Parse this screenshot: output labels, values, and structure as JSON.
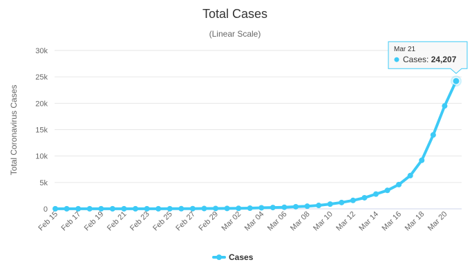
{
  "chart_data": {
    "type": "line",
    "title": "Total Cases",
    "subtitle": "(Linear Scale)",
    "ylabel": "Total Coronavirus Cases",
    "xlabel": "",
    "ylim": [
      0,
      30000
    ],
    "yticks": [
      "0",
      "5k",
      "10k",
      "15k",
      "20k",
      "25k",
      "30k"
    ],
    "ytick_values": [
      0,
      5000,
      10000,
      15000,
      20000,
      25000,
      30000
    ],
    "grid": true,
    "legend_position": "bottom-center",
    "color": "#3dcaf6",
    "x": [
      "Feb 15",
      "Feb 16",
      "Feb 17",
      "Feb 18",
      "Feb 19",
      "Feb 20",
      "Feb 21",
      "Feb 22",
      "Feb 23",
      "Feb 24",
      "Feb 25",
      "Feb 26",
      "Feb 27",
      "Feb 28",
      "Feb 29",
      "Mar 01",
      "Mar 02",
      "Mar 03",
      "Mar 04",
      "Mar 05",
      "Mar 06",
      "Mar 07",
      "Mar 08",
      "Mar 09",
      "Mar 10",
      "Mar 11",
      "Mar 12",
      "Mar 13",
      "Mar 14",
      "Mar 15",
      "Mar 16",
      "Mar 17",
      "Mar 18",
      "Mar 19",
      "Mar 20",
      "Mar 21"
    ],
    "xtick_labels": [
      "Feb 15",
      "Feb 17",
      "Feb 19",
      "Feb 21",
      "Feb 23",
      "Feb 25",
      "Feb 27",
      "Feb 29",
      "Mar 02",
      "Mar 04",
      "Mar 06",
      "Mar 08",
      "Mar 10",
      "Mar 12",
      "Mar 14",
      "Mar 16",
      "Mar 18",
      "Mar 20"
    ],
    "series": [
      {
        "name": "Cases",
        "values": [
          15,
          15,
          15,
          15,
          15,
          15,
          15,
          15,
          15,
          15,
          20,
          30,
          40,
          60,
          70,
          80,
          100,
          130,
          200,
          250,
          300,
          400,
          500,
          650,
          900,
          1200,
          1600,
          2100,
          2800,
          3500,
          4600,
          6300,
          9200,
          14000,
          19500,
          24207
        ]
      }
    ],
    "tooltip": {
      "date": "Mar 21",
      "label": "Cases: ",
      "value": "24,207"
    }
  }
}
